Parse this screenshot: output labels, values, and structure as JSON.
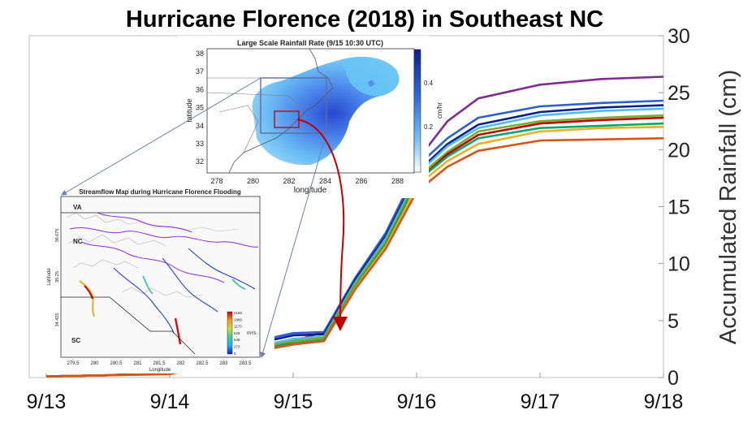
{
  "chart_data": {
    "type": "line",
    "title": "Hurricane Florence (2018) in Southeast NC",
    "xlabel": "",
    "ylabel": "Accumulated Rainfall (cm)",
    "x_ticks": [
      "9/13",
      "9/14",
      "9/15",
      "9/16",
      "9/17",
      "9/18"
    ],
    "ylim": [
      0,
      30
    ],
    "y_ticks": [
      "0",
      "5",
      "10",
      "15",
      "20",
      "25",
      "30"
    ],
    "x": [
      0,
      0.5,
      1.0,
      1.25,
      1.5,
      1.6,
      1.75,
      2.0,
      2.25,
      2.5,
      2.75,
      2.9,
      3.0,
      3.25,
      3.5,
      4.0,
      4.5,
      5.0
    ],
    "series": [
      {
        "color": "#7e2f8e",
        "values": [
          0.1,
          0.2,
          0.4,
          1.0,
          1.7,
          2.1,
          2.6,
          3.2,
          4.0,
          8.5,
          12.5,
          16.0,
          19.0,
          22.5,
          24.5,
          25.7,
          26.2,
          26.4
        ]
      },
      {
        "color": "#2b5fcf",
        "values": [
          0.1,
          0.2,
          0.5,
          1.3,
          2.3,
          2.7,
          3.3,
          3.9,
          4.0,
          8.7,
          12.7,
          16.0,
          18.5,
          21.0,
          22.8,
          23.8,
          24.1,
          24.3
        ]
      },
      {
        "color": "#0b1f8a",
        "values": [
          0.1,
          0.2,
          0.4,
          1.2,
          2.1,
          2.5,
          3.1,
          3.7,
          3.8,
          8.5,
          12.4,
          15.6,
          18.0,
          20.5,
          22.2,
          23.3,
          23.7,
          23.9
        ]
      },
      {
        "color": "#4dbeee",
        "values": [
          0.1,
          0.2,
          0.4,
          1.1,
          1.9,
          2.3,
          2.8,
          3.4,
          3.6,
          8.3,
          12.2,
          15.4,
          17.8,
          20.3,
          21.9,
          23.0,
          23.4,
          23.6
        ]
      },
      {
        "color": "#77ac30",
        "values": [
          0.1,
          0.2,
          0.4,
          1.1,
          1.8,
          2.2,
          2.7,
          3.2,
          3.5,
          8.2,
          12.0,
          15.2,
          17.5,
          19.8,
          21.6,
          22.5,
          22.8,
          23.0
        ]
      },
      {
        "color": "#c00000",
        "values": [
          0.1,
          0.2,
          0.4,
          1.0,
          1.7,
          2.0,
          2.5,
          3.0,
          3.3,
          7.9,
          11.7,
          14.9,
          17.2,
          19.6,
          21.3,
          22.3,
          22.6,
          22.8
        ]
      },
      {
        "color": "#00a86b",
        "values": [
          0.1,
          0.2,
          0.4,
          1.0,
          1.7,
          2.0,
          2.5,
          3.0,
          3.3,
          7.9,
          11.7,
          14.9,
          17.2,
          19.4,
          21.0,
          21.9,
          22.1,
          22.3
        ]
      },
      {
        "color": "#edb120",
        "values": [
          0.1,
          0.2,
          0.3,
          0.9,
          1.6,
          1.9,
          2.4,
          2.9,
          3.2,
          7.8,
          11.5,
          14.6,
          16.8,
          19.0,
          20.5,
          21.6,
          21.9,
          22.0
        ]
      },
      {
        "color": "#d95319",
        "values": [
          0.1,
          0.2,
          0.3,
          0.9,
          1.6,
          1.9,
          2.4,
          2.9,
          3.2,
          7.7,
          11.3,
          14.3,
          16.3,
          18.5,
          19.9,
          20.8,
          20.9,
          21.0
        ]
      }
    ]
  },
  "inset_rainfall_map": {
    "title": "Large Scale Rainfall Rate (9/15 10:30 UTC)",
    "xlabel": "longitude",
    "ylabel": "latitude",
    "x_ticks": [
      "278",
      "280",
      "282",
      "284",
      "286",
      "288"
    ],
    "y_ticks": [
      "38",
      "37",
      "36",
      "35",
      "34",
      "33",
      "32"
    ],
    "colorbar_label": "cm/hr",
    "colorbar_ticks": [
      "0.4",
      "0.2"
    ]
  },
  "inset_streamflow_map": {
    "title": "Streamflow Map during Hurricane Florence Flooding",
    "xlabel": "Longitude",
    "ylabel": "Latitude",
    "x_ticks": [
      "279.5",
      "280",
      "280.5",
      "281",
      "281.5",
      "282",
      "282.5",
      "283",
      "283.5"
    ],
    "y_ticks": [
      "36.075",
      "35.25",
      "34.425"
    ],
    "region_labels": [
      "VA",
      "NC",
      "SC"
    ],
    "colorbar_label": "m³/s",
    "colorbar_ticks": [
      "2180",
      "1880",
      "1170",
      "828",
      "548",
      "273",
      "0"
    ]
  }
}
